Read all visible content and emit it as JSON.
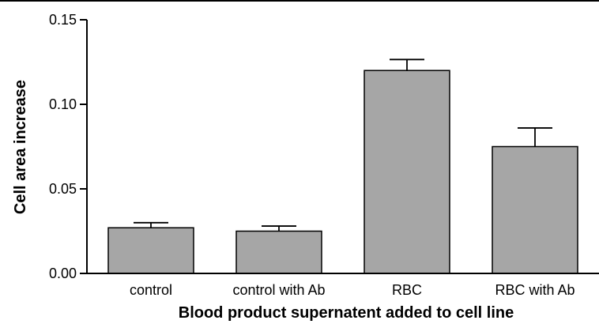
{
  "chart_data": {
    "type": "bar",
    "title": "",
    "xlabel": "Blood product supernatent added to cell line",
    "ylabel": "Cell area increase",
    "categories": [
      "control",
      "control with Ab",
      "RBC",
      "RBC with Ab"
    ],
    "values": [
      0.027,
      0.025,
      0.12,
      0.075
    ],
    "errors": [
      0.003,
      0.003,
      0.0065,
      0.011
    ],
    "ylim": [
      0,
      0.15
    ],
    "yticks": [
      0.0,
      0.05,
      0.1,
      0.15
    ],
    "ytick_labels": [
      "0.00",
      "0.05",
      "0.10",
      "0.15"
    ],
    "grid": false,
    "bar_color": "#a6a6a6"
  }
}
